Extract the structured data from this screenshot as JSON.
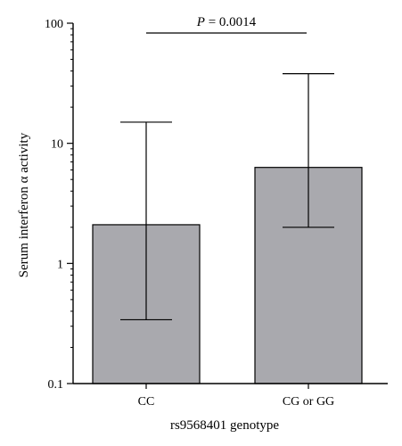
{
  "chart_data": {
    "type": "bar",
    "categories": [
      "CC",
      "CG or GG"
    ],
    "series": [
      {
        "values": [
          2.1,
          6.3
        ],
        "error_low": [
          0.34,
          2.0
        ],
        "error_high": [
          15,
          38
        ]
      }
    ],
    "yscale": "log",
    "ylim": [
      0.1,
      100
    ],
    "yticks": [
      0.1,
      1,
      10,
      100
    ],
    "ytick_labels": [
      "0.1",
      "1",
      "10",
      "100"
    ],
    "xlabel": "rs9568401 genotype",
    "ylabel": "Serum interferon α activity",
    "annotation": {
      "p_symbol": "P",
      "p_value": "= 0.0014"
    },
    "bar_color": "#a9a9ae",
    "grid": false
  }
}
